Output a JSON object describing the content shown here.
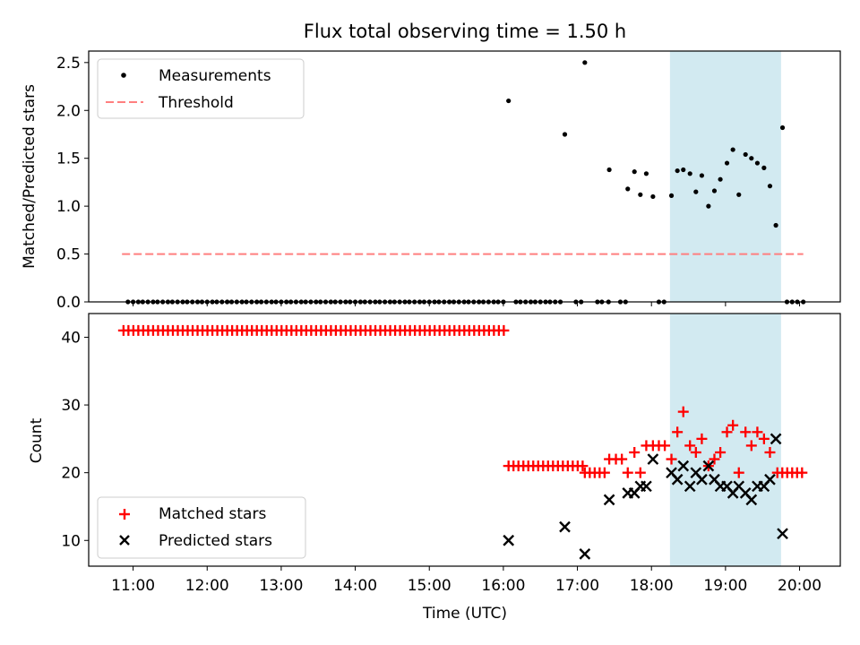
{
  "chart_data": {
    "title": "Flux total observing time = 1.50 h",
    "xlabel": "Time (UTC)",
    "x_unit": "hours UTC",
    "xlim": [
      10.4,
      20.55
    ],
    "xticks": [
      {
        "value": 11,
        "label": "11:00"
      },
      {
        "value": 12,
        "label": "12:00"
      },
      {
        "value": 13,
        "label": "13:00"
      },
      {
        "value": 14,
        "label": "14:00"
      },
      {
        "value": 15,
        "label": "15:00"
      },
      {
        "value": 16,
        "label": "16:00"
      },
      {
        "value": 17,
        "label": "17:00"
      },
      {
        "value": 18,
        "label": "18:00"
      },
      {
        "value": 19,
        "label": "19:00"
      },
      {
        "value": 20,
        "label": "20:00"
      }
    ],
    "shaded_span": {
      "x0": 18.25,
      "x1": 19.75,
      "color": "#add8e6"
    },
    "colors": {
      "measurements": "#000000",
      "threshold": "#ff7f7f",
      "matched": "#ff0000",
      "predicted": "#000000",
      "shade": "#add8e6"
    },
    "panels": [
      {
        "type": "scatter",
        "ylabel": "Matched/Predicted stars",
        "ylim": [
          0,
          2.62
        ],
        "yticks": [
          {
            "value": 0,
            "label": "0.0"
          },
          {
            "value": 0.5,
            "label": "0.5"
          },
          {
            "value": 1.0,
            "label": "1.0"
          },
          {
            "value": 1.5,
            "label": "1.5"
          },
          {
            "value": 2.0,
            "label": "2.0"
          },
          {
            "value": 2.5,
            "label": "2.5"
          }
        ],
        "legend": {
          "placement": "upper-left",
          "entries": [
            "Measurements",
            "Threshold"
          ]
        },
        "threshold": {
          "name": "Threshold",
          "y": 0.5,
          "x": [
            10.85,
            20.05
          ]
        },
        "measurements": {
          "name": "Measurements",
          "zeros_x": [
            10.93,
            11.0,
            11.07,
            11.13,
            11.2,
            11.27,
            11.33,
            11.4,
            11.47,
            11.53,
            11.6,
            11.67,
            11.73,
            11.8,
            11.87,
            11.93,
            12.0,
            12.07,
            12.13,
            12.2,
            12.27,
            12.33,
            12.4,
            12.47,
            12.53,
            12.6,
            12.67,
            12.73,
            12.8,
            12.87,
            12.93,
            13.0,
            13.07,
            13.13,
            13.2,
            13.27,
            13.33,
            13.4,
            13.47,
            13.53,
            13.6,
            13.67,
            13.73,
            13.8,
            13.87,
            13.93,
            14.0,
            14.07,
            14.13,
            14.2,
            14.27,
            14.33,
            14.4,
            14.47,
            14.53,
            14.6,
            14.67,
            14.73,
            14.8,
            14.87,
            14.93,
            15.0,
            15.07,
            15.13,
            15.2,
            15.27,
            15.33,
            15.4,
            15.47,
            15.53,
            15.6,
            15.67,
            15.73,
            15.8,
            15.87,
            15.93,
            16.0,
            16.17,
            16.23,
            16.3,
            16.37,
            16.43,
            16.5,
            16.57,
            16.63,
            16.7,
            16.77,
            16.98,
            17.05,
            17.27,
            17.33,
            17.42,
            17.58,
            17.65,
            18.1,
            18.17,
            19.83,
            19.9,
            19.97,
            20.05
          ],
          "points": [
            {
              "x": 16.07,
              "y": 2.1
            },
            {
              "x": 16.83,
              "y": 1.75
            },
            {
              "x": 17.1,
              "y": 2.5
            },
            {
              "x": 17.43,
              "y": 1.38
            },
            {
              "x": 17.68,
              "y": 1.18
            },
            {
              "x": 17.77,
              "y": 1.36
            },
            {
              "x": 17.85,
              "y": 1.12
            },
            {
              "x": 17.93,
              "y": 1.34
            },
            {
              "x": 18.02,
              "y": 1.1
            },
            {
              "x": 18.27,
              "y": 1.11
            },
            {
              "x": 18.35,
              "y": 1.37
            },
            {
              "x": 18.43,
              "y": 1.38
            },
            {
              "x": 18.52,
              "y": 1.34
            },
            {
              "x": 18.6,
              "y": 1.15
            },
            {
              "x": 18.68,
              "y": 1.32
            },
            {
              "x": 18.77,
              "y": 1.0
            },
            {
              "x": 18.85,
              "y": 1.16
            },
            {
              "x": 18.93,
              "y": 1.28
            },
            {
              "x": 19.02,
              "y": 1.45
            },
            {
              "x": 19.1,
              "y": 1.59
            },
            {
              "x": 19.18,
              "y": 1.12
            },
            {
              "x": 19.27,
              "y": 1.54
            },
            {
              "x": 19.35,
              "y": 1.5
            },
            {
              "x": 19.43,
              "y": 1.45
            },
            {
              "x": 19.52,
              "y": 1.4
            },
            {
              "x": 19.6,
              "y": 1.21
            },
            {
              "x": 19.68,
              "y": 0.8
            },
            {
              "x": 19.77,
              "y": 1.82
            }
          ]
        }
      },
      {
        "type": "scatter",
        "ylabel": "Count",
        "ylim": [
          6.2,
          43.5
        ],
        "yticks": [
          {
            "value": 10,
            "label": "10"
          },
          {
            "value": 20,
            "label": "20"
          },
          {
            "value": 30,
            "label": "30"
          },
          {
            "value": 40,
            "label": "40"
          }
        ],
        "legend": {
          "placement": "lower-left",
          "entries": [
            "Matched stars",
            "Predicted stars"
          ]
        },
        "matched": {
          "name": "Matched stars",
          "const_runs": [
            {
              "y": 41,
              "x_start": 10.87,
              "x_end": 16.03,
              "step": 0.0667
            },
            {
              "y": 21,
              "x_start": 16.07,
              "x_end": 17.13,
              "step": 0.0667
            },
            {
              "y": 20,
              "x_start": 17.1,
              "x_end": 17.37,
              "step": 0.0667
            },
            {
              "y": 20,
              "x_start": 19.7,
              "x_end": 20.1,
              "step": 0.0667
            }
          ],
          "points": [
            {
              "x": 17.43,
              "y": 22
            },
            {
              "x": 17.52,
              "y": 22
            },
            {
              "x": 17.6,
              "y": 22
            },
            {
              "x": 17.68,
              "y": 20
            },
            {
              "x": 17.77,
              "y": 23
            },
            {
              "x": 17.85,
              "y": 20
            },
            {
              "x": 17.93,
              "y": 24
            },
            {
              "x": 18.02,
              "y": 24
            },
            {
              "x": 18.1,
              "y": 24
            },
            {
              "x": 18.18,
              "y": 24
            },
            {
              "x": 18.27,
              "y": 22
            },
            {
              "x": 18.35,
              "y": 26
            },
            {
              "x": 18.43,
              "y": 29
            },
            {
              "x": 18.52,
              "y": 24
            },
            {
              "x": 18.6,
              "y": 23
            },
            {
              "x": 18.68,
              "y": 25
            },
            {
              "x": 18.77,
              "y": 21
            },
            {
              "x": 18.85,
              "y": 22
            },
            {
              "x": 18.93,
              "y": 23
            },
            {
              "x": 19.02,
              "y": 26
            },
            {
              "x": 19.1,
              "y": 27
            },
            {
              "x": 19.18,
              "y": 20
            },
            {
              "x": 19.27,
              "y": 26
            },
            {
              "x": 19.35,
              "y": 24
            },
            {
              "x": 19.43,
              "y": 26
            },
            {
              "x": 19.52,
              "y": 25
            },
            {
              "x": 19.6,
              "y": 23
            }
          ]
        },
        "predicted": {
          "name": "Predicted stars",
          "points": [
            {
              "x": 16.07,
              "y": 10
            },
            {
              "x": 16.83,
              "y": 12
            },
            {
              "x": 17.1,
              "y": 8
            },
            {
              "x": 17.43,
              "y": 16
            },
            {
              "x": 17.68,
              "y": 17
            },
            {
              "x": 17.77,
              "y": 17
            },
            {
              "x": 17.85,
              "y": 18
            },
            {
              "x": 17.93,
              "y": 18
            },
            {
              "x": 18.02,
              "y": 22
            },
            {
              "x": 18.27,
              "y": 20
            },
            {
              "x": 18.35,
              "y": 19
            },
            {
              "x": 18.43,
              "y": 21
            },
            {
              "x": 18.52,
              "y": 18
            },
            {
              "x": 18.6,
              "y": 20
            },
            {
              "x": 18.68,
              "y": 19
            },
            {
              "x": 18.77,
              "y": 21
            },
            {
              "x": 18.85,
              "y": 19
            },
            {
              "x": 18.93,
              "y": 18
            },
            {
              "x": 19.02,
              "y": 18
            },
            {
              "x": 19.1,
              "y": 17
            },
            {
              "x": 19.18,
              "y": 18
            },
            {
              "x": 19.27,
              "y": 17
            },
            {
              "x": 19.35,
              "y": 16
            },
            {
              "x": 19.43,
              "y": 18
            },
            {
              "x": 19.52,
              "y": 18
            },
            {
              "x": 19.6,
              "y": 19
            },
            {
              "x": 19.68,
              "y": 25
            },
            {
              "x": 19.77,
              "y": 11
            }
          ]
        }
      }
    ]
  }
}
